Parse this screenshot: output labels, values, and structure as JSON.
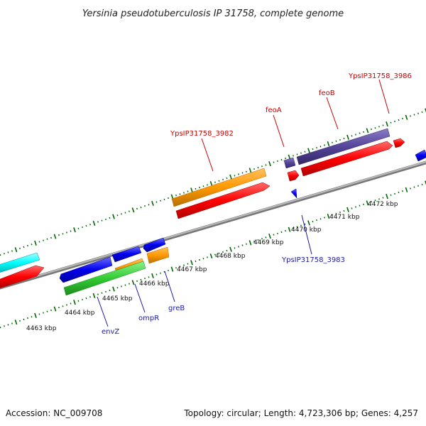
{
  "title": "Yersinia pseudotuberculosis IP 31758, complete genome",
  "footer": {
    "accession": "Accession: NC_009708",
    "summary": "Topology: circular; Length: 4,723,306 bp; Genes: 4,257"
  },
  "ticks": [
    {
      "label": "4463 kbp"
    },
    {
      "label": "4464 kbp"
    },
    {
      "label": "4465 kbp"
    },
    {
      "label": "4466 kbp"
    },
    {
      "label": "4467 kbp"
    },
    {
      "label": "4468 kbp"
    },
    {
      "label": "4469 kbp"
    },
    {
      "label": "4470 kbp"
    },
    {
      "label": "4471 kbp"
    },
    {
      "label": "4472 kbp"
    }
  ],
  "gene_labels": [
    {
      "name": "YpsIP31758_3986",
      "color": "red"
    },
    {
      "name": "feoB",
      "color": "red"
    },
    {
      "name": "feoA",
      "color": "red"
    },
    {
      "name": "YpsIP31758_3982",
      "color": "red"
    },
    {
      "name": "YpsIP31758_3983",
      "color": "blue"
    },
    {
      "name": "envZ",
      "color": "blue"
    },
    {
      "name": "ompR",
      "color": "blue"
    },
    {
      "name": "greB",
      "color": "blue"
    }
  ],
  "colors": {
    "orange": "#ff9900",
    "red": "#ff0000",
    "blue": "#0000ee",
    "green": "#33cc33",
    "cyan": "#00ffff",
    "purple": "#554499",
    "backbone": "#999999",
    "tick": "#006600"
  }
}
